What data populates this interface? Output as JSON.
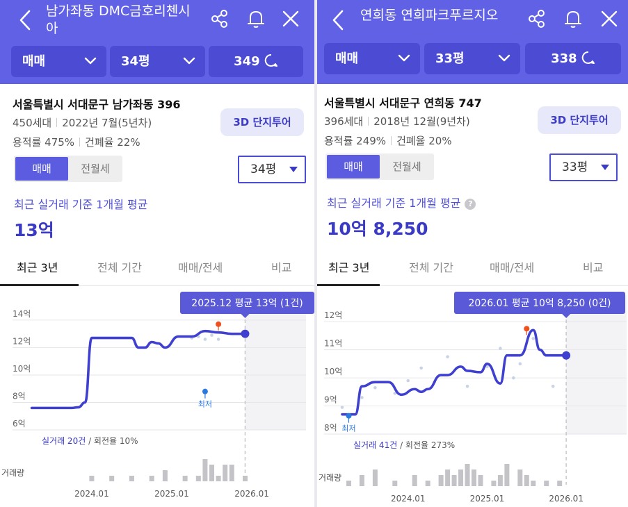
{
  "left": {
    "title": "남가좌동 DMC금호리첸시아",
    "filters": {
      "deal": "매매",
      "size": "34평",
      "comments": "349"
    },
    "address": "서울특별시 서대문구 남가좌동 396",
    "households": "450세대",
    "built": "2022년 7월(5년차)",
    "far": "용적률 475%",
    "bcr": "건폐율 22%",
    "tour_button": "3D 단지투어",
    "segment": {
      "active": "매매",
      "inactive": "전월세"
    },
    "size_select": "34평",
    "avg_label": "최근 실거래 기준 1개월 평균",
    "avg_value": "13억",
    "tabs": [
      "최근 3년",
      "전체 기간",
      "매매/전세",
      "비교"
    ],
    "active_tab": 0,
    "tooltip": "2025.12 평균 13억 (1건)",
    "volume_label": "거래량",
    "stats": {
      "deals": "실거래 20건",
      "turnover": "회전율 10%"
    },
    "lowest_label": "최저"
  },
  "right": {
    "title": "연희동 연희파크푸르지오",
    "filters": {
      "deal": "매매",
      "size": "33평",
      "comments": "338"
    },
    "address": "서울특별시 서대문구 연희동 747",
    "households": "396세대",
    "built": "2018년 12월(9년차)",
    "far": "용적률 249%",
    "bcr": "건폐율 20%",
    "tour_button": "3D 단지투어",
    "segment": {
      "active": "매매",
      "inactive": "전월세"
    },
    "size_select": "33평",
    "avg_label": "최근 실거래 기준 1개월 평균",
    "avg_help": "?",
    "avg_value": "10억 8,250",
    "tabs": [
      "최근 3년",
      "전체 기간",
      "매매/전세",
      "비교"
    ],
    "active_tab": 0,
    "tooltip": "2026.01 평균 10억 8,250 (0건)",
    "volume_label": "거래량",
    "stats": {
      "deals": "실거래 41건",
      "turnover": "회전율 273%"
    },
    "lowest_label": "최저"
  },
  "colors": {
    "header": "#6161e6",
    "filter_box": "#4b4bd4",
    "accent": "#3a3ac4",
    "line": "#4040d0",
    "tooltip": "#5a5ad8",
    "max_marker": "#f0501e",
    "min_marker": "#2a7ae0",
    "volume_bar": "#c4c4c8"
  },
  "chart_data": [
    {
      "type": "line",
      "title": "",
      "xlabel": "",
      "ylabel": "",
      "x_ticks": [
        "2024.01",
        "2025.01",
        "2026.01"
      ],
      "y_ticks": [
        "6억",
        "8억",
        "10억",
        "12억",
        "14억"
      ],
      "ylim": [
        6,
        14.5
      ],
      "xlim": [
        "2023.03",
        "2026.06"
      ],
      "series": [
        {
          "x": [
            "2023.04",
            "2023.07",
            "2023.10",
            "2023.11",
            "2023.12",
            "2024.01",
            "2024.04",
            "2024.07",
            "2024.08",
            "2024.09",
            "2024.10",
            "2024.11",
            "2024.12",
            "2025.02",
            "2025.04",
            "2025.06",
            "2025.08",
            "2025.10",
            "2025.12"
          ],
          "values": [
            7.6,
            7.6,
            7.6,
            7.65,
            8.0,
            12.7,
            12.7,
            12.7,
            12.0,
            12.0,
            12.4,
            12.3,
            12.0,
            12.8,
            12.8,
            13.2,
            13.1,
            13.0,
            13.0
          ]
        }
      ],
      "scatter": [
        {
          "x": "2025.04",
          "value": 12.7
        },
        {
          "x": "2025.05",
          "value": 12.8
        },
        {
          "x": "2025.06",
          "value": 12.6
        },
        {
          "x": "2025.07",
          "value": 12.9
        },
        {
          "x": "2025.08",
          "value": 12.6
        }
      ],
      "max_point": {
        "x": "2025.08",
        "value": 13.7
      },
      "min_point": {
        "x": "2025.06",
        "value": 8.8
      },
      "volume": {
        "x": [
          "2024.01",
          "2024.04",
          "2024.07",
          "2024.10",
          "2024.12",
          "2025.03",
          "2025.05",
          "2025.06",
          "2025.07",
          "2025.08",
          "2025.09",
          "2025.10",
          "2025.12"
        ],
        "values": [
          1,
          1,
          1,
          1,
          2,
          1,
          1,
          4,
          3,
          1,
          3,
          3,
          1
        ]
      }
    },
    {
      "type": "line",
      "title": "",
      "xlabel": "",
      "ylabel": "",
      "x_ticks": [
        "2024.01",
        "2025.01",
        "2026.01"
      ],
      "y_ticks": [
        "8억",
        "9억",
        "10억",
        "11억",
        "12억"
      ],
      "ylim": [
        8,
        12.3
      ],
      "xlim": [
        "2023.03",
        "2026.07"
      ],
      "series": [
        {
          "x": [
            "2023.03",
            "2023.05",
            "2023.06",
            "2023.08",
            "2023.10",
            "2023.12",
            "2024.02",
            "2024.03",
            "2024.04",
            "2024.06",
            "2024.07",
            "2024.09",
            "2024.10",
            "2024.12",
            "2025.01",
            "2025.03",
            "2025.04",
            "2025.06",
            "2025.08",
            "2025.09",
            "2025.10",
            "2025.11",
            "2026.01"
          ],
          "values": [
            8.7,
            8.7,
            9.7,
            9.85,
            9.85,
            9.4,
            9.6,
            9.5,
            9.6,
            10.1,
            10.1,
            10.4,
            10.25,
            10.2,
            10.5,
            9.8,
            10.8,
            10.8,
            11.7,
            11.0,
            10.8,
            10.8,
            10.8
          ]
        }
      ],
      "scatter": [
        {
          "x": "2023.03",
          "value": 8.95
        },
        {
          "x": "2023.06",
          "value": 9.3
        },
        {
          "x": "2023.08",
          "value": 9.65
        },
        {
          "x": "2023.11",
          "value": 9.45
        },
        {
          "x": "2024.01",
          "value": 9.9
        },
        {
          "x": "2024.03",
          "value": 10.35
        },
        {
          "x": "2024.05",
          "value": 9.85
        },
        {
          "x": "2024.07",
          "value": 10.75
        },
        {
          "x": "2024.10",
          "value": 9.7
        },
        {
          "x": "2025.01",
          "value": 10.4
        },
        {
          "x": "2025.03",
          "value": 11.05
        },
        {
          "x": "2025.05",
          "value": 10.0
        },
        {
          "x": "2025.06",
          "value": 10.5
        },
        {
          "x": "2025.08",
          "value": 11.4
        },
        {
          "x": "2025.11",
          "value": 9.7
        }
      ],
      "max_point": {
        "x": "2025.07",
        "value": 11.75
      },
      "min_point": {
        "x": "2023.04",
        "value": 8.65
      },
      "volume": {
        "x": [
          "2023.04",
          "2023.06",
          "2023.08",
          "2023.11",
          "2024.02",
          "2024.04",
          "2024.06",
          "2024.07",
          "2024.08",
          "2024.09",
          "2024.10",
          "2024.11",
          "2024.12",
          "2025.02",
          "2025.03",
          "2025.04",
          "2025.06",
          "2025.07",
          "2025.08",
          "2025.10",
          "2025.12"
        ],
        "values": [
          1,
          2,
          3,
          1,
          2,
          1,
          2,
          3,
          2,
          3,
          4,
          3,
          2,
          1,
          2,
          4,
          3,
          2,
          1,
          1,
          1
        ]
      }
    }
  ]
}
